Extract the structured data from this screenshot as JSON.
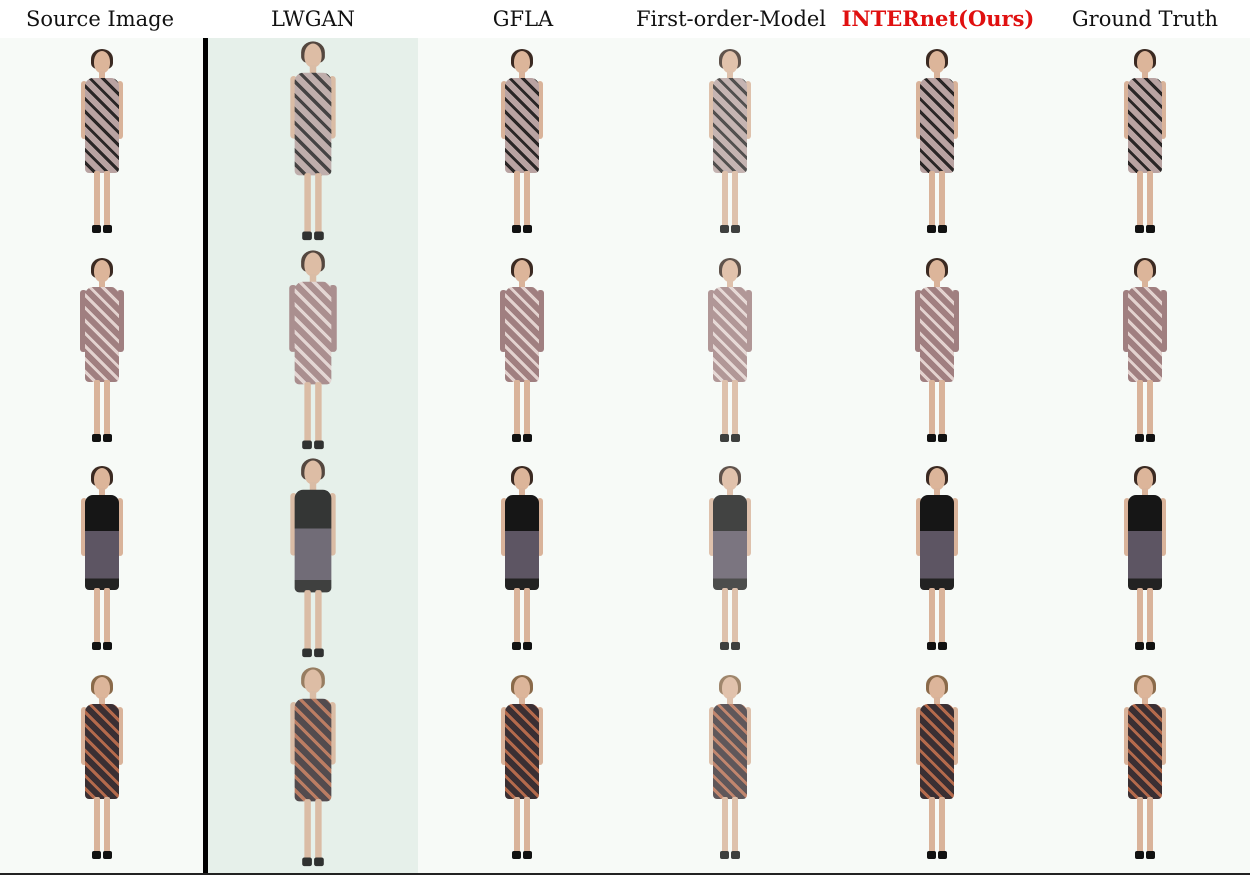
{
  "columns": [
    {
      "label": "Source Image",
      "highlight": false
    },
    {
      "label": "LWGAN",
      "highlight": false
    },
    {
      "label": "GFLA",
      "highlight": false
    },
    {
      "label": "First-order-Model",
      "highlight": false
    },
    {
      "label": "INTERnet(Ours)",
      "highlight": true
    },
    {
      "label": "Ground Truth",
      "highlight": false
    }
  ],
  "colors": {
    "highlight_text": "#e01010",
    "lwgan_background": "#e6f0ea",
    "default_background": "#f7faf7"
  },
  "rows": [
    {
      "outfit": "floral-sleeveless-dress",
      "dress_color": "#b9a3a2",
      "pattern_color": "#2a2626"
    },
    {
      "outfit": "sequin-long-sleeve-dress",
      "dress_color": "#a07f80",
      "pattern_color": "#e3d2cf"
    },
    {
      "outfit": "black-top-tweed-skirt-dress",
      "dress_color": "#5d5563",
      "pattern_color": "#161616"
    },
    {
      "outfit": "geometric-wrap-dress",
      "dress_color": "#3a2f33",
      "pattern_color": "#b46a4c"
    }
  ]
}
